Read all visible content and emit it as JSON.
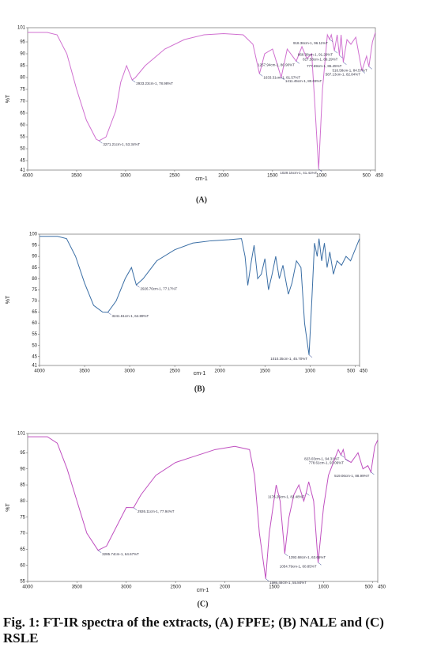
{
  "chart_data": [
    {
      "type": "line",
      "panel_label": "(A)",
      "x_label": "cm-1",
      "y_label": "%T",
      "xlim": [
        4000,
        450
      ],
      "ylim": [
        41,
        101
      ],
      "xticks": [
        4000,
        3500,
        3000,
        2500,
        2000,
        1500,
        1000,
        500,
        450
      ],
      "yticks": [
        41,
        45,
        50,
        55,
        60,
        65,
        70,
        75,
        80,
        85,
        90,
        95,
        101
      ],
      "x": [
        4000,
        3800,
        3700,
        3600,
        3500,
        3400,
        3300,
        3271.21,
        3200,
        3100,
        3050,
        2990,
        2933.23,
        2900,
        2800,
        2600,
        2400,
        2200,
        2000,
        1800,
        1700,
        1633.31,
        1580,
        1500,
        1411.45,
        1350,
        1257.94,
        1200,
        1150,
        1100,
        1070,
        1029.15,
        990,
        940,
        918.36,
        900,
        868.38,
        840,
        817.58,
        800,
        777.69,
        740,
        700,
        650,
        587.13,
        540,
        516.58,
        480,
        450
      ],
      "series": [
        {
          "color": "#d070d0",
          "values": [
            99,
            99,
            98,
            90,
            75,
            62,
            54,
            53.34,
            55,
            66,
            78,
            85,
            78.98,
            80,
            85,
            92,
            96,
            98,
            98.5,
            98,
            94,
            81.57,
            90,
            92,
            80.03,
            92,
            86.9,
            93,
            88,
            90,
            70,
            41.41,
            75,
            98,
            96.11,
            98,
            91.29,
            98,
            89.29,
            98,
            86.45,
            96,
            94,
            97,
            82.84,
            89,
            84.57,
            95,
            99
          ]
        }
      ],
      "annotations": [
        {
          "label": "3271.21cm-1, 53.34%T",
          "x": 3271.21,
          "y": 53.34
        },
        {
          "label": "2933.23cm-1, 78.98%T",
          "x": 2933.23,
          "y": 78.98
        },
        {
          "label": "1633.31cm-1, 81.57%T",
          "x": 1633.31,
          "y": 81.57
        },
        {
          "label": "1411.45cm-1, 80.03%T",
          "x": 1411.45,
          "y": 80.03
        },
        {
          "label": "1257.94cm-1, 86.90%T",
          "x": 1257.94,
          "y": 86.9
        },
        {
          "label": "1029.15cm-1, 41.41%T",
          "x": 1029.15,
          "y": 41.41
        },
        {
          "label": "918.36cm-1, 96.11%T",
          "x": 918.36,
          "y": 96.11
        },
        {
          "label": "868.38cm-1, 91.29%T",
          "x": 868.38,
          "y": 91.29
        },
        {
          "label": "817.58cm-1, 89.29%T",
          "x": 817.58,
          "y": 89.29
        },
        {
          "label": "777.69cm-1, 86.45%T",
          "x": 777.69,
          "y": 86.45
        },
        {
          "label": "516.58cm-1, 84.57%T",
          "x": 516.58,
          "y": 84.57
        },
        {
          "label": "587.13cm-1, 82.84%T",
          "x": 587.13,
          "y": 82.84
        }
      ]
    },
    {
      "type": "line",
      "panel_label": "(B)",
      "x_label": "cm-1",
      "y_label": "%T",
      "xlim": [
        4000,
        450
      ],
      "ylim": [
        41,
        100
      ],
      "xticks": [
        4000,
        3500,
        3000,
        2500,
        2000,
        1500,
        1000,
        500,
        450
      ],
      "yticks": [
        41,
        45,
        50,
        55,
        60,
        65,
        70,
        75,
        80,
        85,
        90,
        95,
        100
      ],
      "x": [
        4000,
        3800,
        3700,
        3600,
        3500,
        3400,
        3300,
        3241.61,
        3150,
        3050,
        2980,
        2926.76,
        2850,
        2700,
        2500,
        2300,
        2100,
        1900,
        1760,
        1720,
        1690,
        1650,
        1620,
        1580,
        1540,
        1500,
        1460,
        1420,
        1380,
        1340,
        1300,
        1240,
        1200,
        1150,
        1100,
        1060,
        1010.35,
        980,
        950,
        920,
        900,
        870,
        840,
        810,
        780,
        740,
        700,
        650,
        600,
        550,
        500,
        450
      ],
      "series": [
        {
          "color": "#3a6ea5",
          "values": [
            99,
            99,
            98,
            90,
            78,
            68,
            65,
            64.89,
            70,
            80,
            85,
            77.17,
            80,
            88,
            93,
            96,
            97,
            97.5,
            98,
            90,
            77,
            88,
            95,
            80,
            82,
            89,
            75,
            82,
            90,
            80,
            86,
            73,
            78,
            88,
            85,
            60,
            45.7,
            70,
            96,
            90,
            98,
            88,
            96,
            85,
            92,
            82,
            88,
            86,
            90,
            88,
            93,
            98
          ]
        }
      ],
      "annotations": [
        {
          "label": "3241.61cm-1, 64.89%T",
          "x": 3241.61,
          "y": 64.89
        },
        {
          "label": "2926.76cm-1, 77.17%T",
          "x": 2926.76,
          "y": 77.17
        },
        {
          "label": "1010.35cm-1, 45.70%T",
          "x": 1010.35,
          "y": 45.7
        }
      ]
    },
    {
      "type": "line",
      "panel_label": "(C)",
      "x_label": "cm-1",
      "y_label": "%T",
      "xlim": [
        4000,
        450
      ],
      "ylim": [
        55,
        101
      ],
      "xticks": [
        4000,
        3500,
        3000,
        2500,
        2000,
        1500,
        1000,
        500,
        450
      ],
      "yticks": [
        55,
        60,
        65,
        70,
        75,
        80,
        85,
        90,
        95,
        101
      ],
      "x": [
        4000,
        3800,
        3700,
        3600,
        3500,
        3400,
        3285.74,
        3200,
        3100,
        3000,
        2926.11,
        2850,
        2700,
        2500,
        2300,
        2100,
        1900,
        1750,
        1700,
        1650,
        1586.48,
        1550,
        1480,
        1440,
        1392.68,
        1350,
        1300,
        1250,
        1200,
        1176.26,
        1150,
        1100,
        1054.79,
        1000,
        950,
        900,
        850,
        823.03,
        800,
        778.61,
        720,
        650,
        600,
        550,
        519.06,
        480,
        450
      ],
      "series": [
        {
          "color": "#c050c0",
          "values": [
            100,
            100,
            98,
            90,
            80,
            70,
            64.67,
            66,
            72,
            78,
            77.94,
            82,
            88,
            92,
            94,
            96,
            97,
            96,
            88,
            70,
            55.84,
            70,
            85,
            80,
            63.65,
            75,
            82,
            85,
            80,
            82.48,
            86,
            80,
            60.85,
            78,
            88,
            92,
            96,
            94.31,
            96,
            93.06,
            92,
            95,
            90,
            91,
            88.99,
            97,
            99
          ]
        }
      ],
      "annotations": [
        {
          "label": "3285.74cm-1, 64.67%T",
          "x": 3285.74,
          "y": 64.67
        },
        {
          "label": "2926.11cm-1, 77.94%T",
          "x": 2926.11,
          "y": 77.94
        },
        {
          "label": "1586.48cm-1, 55.84%T",
          "x": 1586.48,
          "y": 55.84
        },
        {
          "label": "1392.68cm-1, 63.65%T",
          "x": 1392.68,
          "y": 63.65
        },
        {
          "label": "1176.26cm-1, 82.48%T",
          "x": 1176.26,
          "y": 82.48
        },
        {
          "label": "1054.79cm-1, 60.85%T",
          "x": 1054.79,
          "y": 60.85
        },
        {
          "label": "823.03cm-1, 94.31%T",
          "x": 823.03,
          "y": 94.31
        },
        {
          "label": "778.61cm-1, 93.06%T",
          "x": 778.61,
          "y": 93.06
        },
        {
          "label": "519.06cm-1, 88.99%T",
          "x": 519.06,
          "y": 88.99
        }
      ]
    }
  ],
  "caption": "Fig. 1: FT-IR spectra of the extracts, (A) FPFE; (B) NALE and (C) RSLE"
}
